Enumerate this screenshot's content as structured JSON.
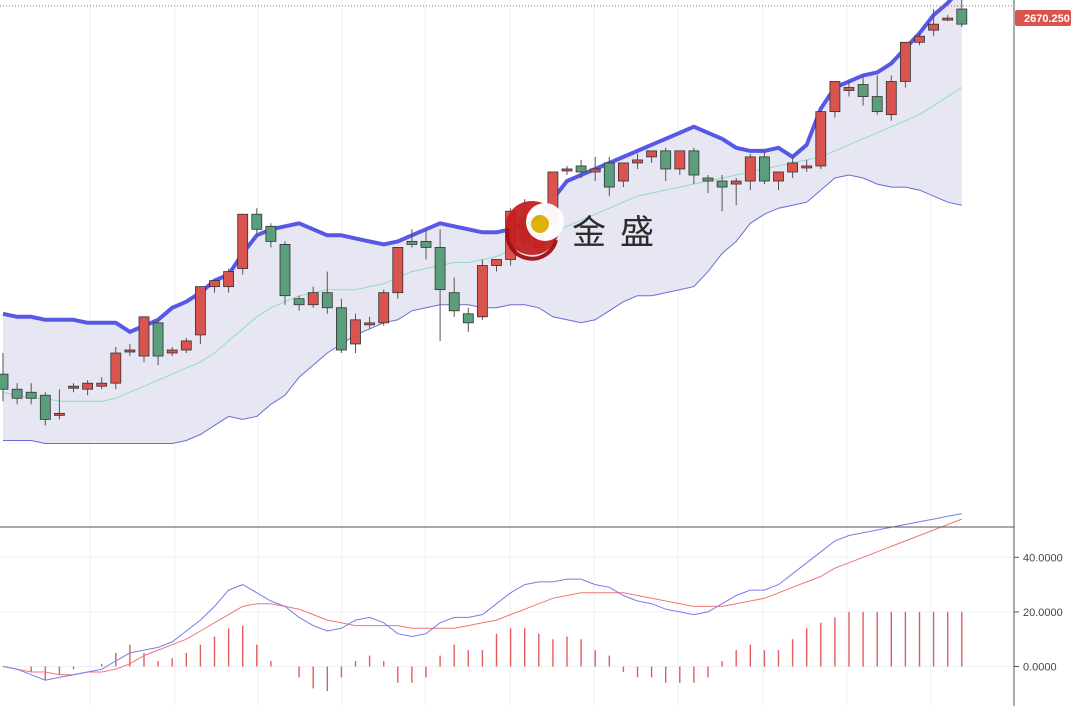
{
  "colors": {
    "bull": "#5a9e7c",
    "bear": "#d9534f",
    "upper_band": "#5858e6",
    "lower_band": "#6b6bd8",
    "band_fill": "#e7e7f3",
    "mid_band": "#8fdcc4",
    "dif": "#7a7aea",
    "dea": "#ee7777",
    "hist": "#e45c5c",
    "price_tag": "#d9534f"
  },
  "watermark": {
    "brand": "金盛",
    "icon": "jinsheng-logo-icon"
  },
  "last_price": "2670.250",
  "chart_data": [
    {
      "type": "candlestick",
      "title": "",
      "ylim": [
        1810,
        2680
      ],
      "last_price": 2670.25,
      "candles": [
        [
          2060,
          2095,
          2035,
          2015
        ],
        [
          2035,
          2045,
          2020,
          2010
        ],
        [
          2030,
          2045,
          2020,
          2010
        ],
        [
          2025,
          2030,
          1985,
          1975
        ],
        [
          1995,
          2035,
          1995,
          1985
        ],
        [
          2040,
          2045,
          2040,
          2030
        ],
        [
          2035,
          2050,
          2045,
          2025
        ],
        [
          2040,
          2055,
          2045,
          2035
        ],
        [
          2045,
          2105,
          2095,
          2035
        ],
        [
          2100,
          2110,
          2100,
          2090
        ],
        [
          2090,
          2155,
          2155,
          2080
        ],
        [
          2145,
          2150,
          2090,
          2075
        ],
        [
          2095,
          2105,
          2100,
          2090
        ],
        [
          2100,
          2120,
          2115,
          2095
        ],
        [
          2125,
          2205,
          2205,
          2110
        ],
        [
          2205,
          2215,
          2215,
          2195
        ],
        [
          2205,
          2235,
          2230,
          2195
        ],
        [
          2235,
          2320,
          2325,
          2225
        ],
        [
          2325,
          2335,
          2300,
          2290
        ],
        [
          2305,
          2310,
          2280,
          2270
        ],
        [
          2275,
          2280,
          2190,
          2175
        ],
        [
          2185,
          2190,
          2175,
          2165
        ],
        [
          2175,
          2205,
          2195,
          2170
        ],
        [
          2195,
          2230,
          2170,
          2160
        ],
        [
          2170,
          2185,
          2100,
          2095
        ],
        [
          2110,
          2160,
          2150,
          2095
        ],
        [
          2145,
          2155,
          2145,
          2135
        ],
        [
          2145,
          2200,
          2195,
          2140
        ],
        [
          2195,
          2270,
          2270,
          2185
        ],
        [
          2280,
          2300,
          2275,
          2270
        ],
        [
          2280,
          2300,
          2270,
          2250
        ],
        [
          2270,
          2300,
          2200,
          2115
        ],
        [
          2195,
          2220,
          2165,
          2155
        ],
        [
          2160,
          2170,
          2145,
          2130
        ],
        [
          2155,
          2250,
          2240,
          2150
        ],
        [
          2240,
          2250,
          2250,
          2230
        ],
        [
          2250,
          2335,
          2330,
          2240
        ],
        [
          2320,
          2350,
          2280,
          2270
        ],
        [
          2270,
          2300,
          2290,
          2260
        ],
        [
          2310,
          2395,
          2395,
          2300
        ],
        [
          2400,
          2405,
          2400,
          2390
        ],
        [
          2405,
          2415,
          2395,
          2385
        ],
        [
          2395,
          2420,
          2400,
          2380
        ],
        [
          2410,
          2420,
          2370,
          2355
        ],
        [
          2380,
          2400,
          2410,
          2370
        ],
        [
          2410,
          2425,
          2415,
          2400
        ],
        [
          2420,
          2430,
          2430,
          2410
        ],
        [
          2430,
          2435,
          2400,
          2380
        ],
        [
          2400,
          2430,
          2430,
          2390
        ],
        [
          2430,
          2435,
          2390,
          2375
        ],
        [
          2385,
          2390,
          2380,
          2360
        ],
        [
          2380,
          2390,
          2370,
          2330
        ],
        [
          2375,
          2385,
          2380,
          2340
        ],
        [
          2380,
          2425,
          2420,
          2365
        ],
        [
          2420,
          2430,
          2380,
          2375
        ],
        [
          2380,
          2395,
          2395,
          2365
        ],
        [
          2395,
          2420,
          2410,
          2385
        ],
        [
          2405,
          2415,
          2405,
          2395
        ],
        [
          2405,
          2495,
          2495,
          2400
        ],
        [
          2495,
          2545,
          2545,
          2485
        ],
        [
          2530,
          2545,
          2535,
          2520
        ],
        [
          2540,
          2555,
          2520,
          2505
        ],
        [
          2520,
          2555,
          2495,
          2490
        ],
        [
          2490,
          2555,
          2545,
          2480
        ],
        [
          2545,
          2610,
          2610,
          2535
        ],
        [
          2610,
          2625,
          2620,
          2605
        ],
        [
          2630,
          2665,
          2640,
          2620
        ],
        [
          2650,
          2655,
          2650,
          2645
        ],
        [
          2665,
          2680,
          2640,
          2635
        ]
      ],
      "boll_upper": [
        2160,
        2155,
        2155,
        2150,
        2150,
        2150,
        2145,
        2145,
        2145,
        2130,
        2140,
        2150,
        2170,
        2180,
        2195,
        2215,
        2225,
        2260,
        2290,
        2300,
        2305,
        2310,
        2300,
        2290,
        2290,
        2285,
        2280,
        2275,
        2280,
        2290,
        2300,
        2310,
        2305,
        2300,
        2295,
        2295,
        2300,
        2310,
        2320,
        2350,
        2380,
        2390,
        2400,
        2410,
        2420,
        2430,
        2440,
        2450,
        2460,
        2470,
        2460,
        2450,
        2435,
        2430,
        2430,
        2435,
        2420,
        2440,
        2500,
        2535,
        2545,
        2555,
        2560,
        2575,
        2600,
        2625,
        2655,
        2675,
        2700
      ],
      "boll_mid": [
        2030,
        2025,
        2020,
        2020,
        2015,
        2015,
        2015,
        2015,
        2020,
        2030,
        2040,
        2050,
        2060,
        2070,
        2080,
        2095,
        2115,
        2135,
        2155,
        2170,
        2180,
        2190,
        2195,
        2200,
        2200,
        2200,
        2205,
        2210,
        2220,
        2230,
        2235,
        2240,
        2245,
        2245,
        2250,
        2255,
        2265,
        2275,
        2285,
        2295,
        2305,
        2315,
        2325,
        2335,
        2345,
        2355,
        2360,
        2365,
        2370,
        2375,
        2380,
        2385,
        2390,
        2395,
        2400,
        2405,
        2410,
        2415,
        2420,
        2430,
        2440,
        2450,
        2460,
        2470,
        2480,
        2490,
        2505,
        2520,
        2535
      ],
      "boll_lower": [
        1950,
        1950,
        1950,
        1945,
        1945,
        1945,
        1945,
        1945,
        1945,
        1945,
        1945,
        1945,
        1945,
        1950,
        1960,
        1975,
        1990,
        1985,
        1990,
        2010,
        2025,
        2055,
        2075,
        2095,
        2110,
        2125,
        2135,
        2145,
        2150,
        2165,
        2170,
        2175,
        2175,
        2175,
        2170,
        2170,
        2175,
        2175,
        2170,
        2155,
        2150,
        2145,
        2150,
        2165,
        2180,
        2190,
        2190,
        2195,
        2200,
        2205,
        2230,
        2260,
        2280,
        2310,
        2325,
        2335,
        2340,
        2345,
        2365,
        2385,
        2390,
        2385,
        2375,
        2370,
        2370,
        2365,
        2355,
        2345,
        2340
      ]
    },
    {
      "type": "macd",
      "title": "",
      "ylim": [
        -13,
        50
      ],
      "ytick_labels": [
        "40.0000",
        "20.0000",
        "0.0000"
      ],
      "dif": [
        0,
        -1,
        -3,
        -5,
        -4,
        -3,
        -2,
        -1,
        2,
        5,
        6,
        7,
        9,
        13,
        17,
        22,
        28,
        30,
        27,
        24,
        22,
        18,
        15,
        13,
        14,
        17,
        18,
        16,
        12,
        11,
        12,
        16,
        18,
        18,
        19,
        23,
        27,
        30,
        31,
        31,
        32,
        32,
        30,
        29,
        26,
        24,
        23,
        21,
        20,
        19,
        20,
        23,
        26,
        28,
        28,
        30,
        34,
        38,
        42,
        46,
        48,
        49,
        50,
        51,
        52,
        53,
        54,
        55,
        56
      ],
      "dea": [
        0,
        -1,
        -2,
        -2,
        -3,
        -3,
        -2,
        -2,
        -1,
        1,
        4,
        6,
        8,
        10,
        13,
        16,
        19,
        22,
        23,
        23,
        22,
        21,
        19,
        17,
        16,
        15,
        15,
        15,
        15,
        14,
        14,
        14,
        14,
        15,
        16,
        17,
        19,
        21,
        23,
        25,
        26,
        27,
        27,
        27,
        27,
        26,
        25,
        24,
        23,
        22,
        22,
        22,
        23,
        24,
        25,
        27,
        29,
        31,
        33,
        36,
        38,
        40,
        42,
        44,
        46,
        48,
        50,
        52,
        54
      ],
      "hist": [
        0,
        0,
        -2,
        -5,
        -3,
        -1,
        0,
        1,
        5,
        8,
        5,
        2,
        3,
        5,
        8,
        11,
        14,
        15,
        8,
        2,
        0,
        -4,
        -8,
        -9,
        -4,
        2,
        4,
        2,
        -6,
        -6,
        -4,
        4,
        8,
        6,
        6,
        12,
        14,
        14,
        12,
        10,
        11,
        10,
        6,
        4,
        -2,
        -4,
        -4,
        -6,
        -6,
        -6,
        -4,
        2,
        6,
        8,
        6,
        6,
        10,
        14,
        16,
        18,
        20,
        20,
        20,
        20,
        20,
        20,
        20,
        20,
        20
      ]
    }
  ]
}
